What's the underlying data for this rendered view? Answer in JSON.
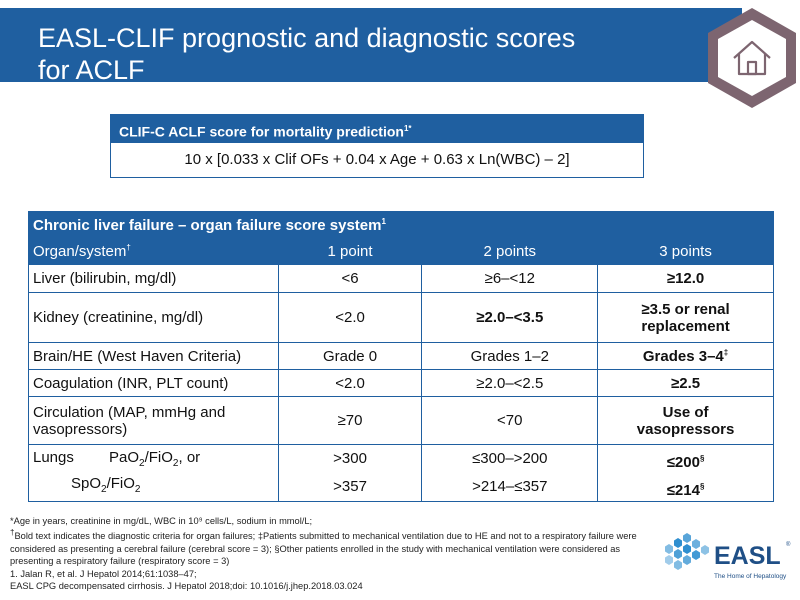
{
  "title": {
    "line1": "EASL-CLIF prognostic and diagnostic scores",
    "line2": "for ACLF"
  },
  "formula": {
    "header": "CLIF-C ACLF score for mortality prediction",
    "header_sup": "1*",
    "body": "10 x [0.033 x Clif OFs + 0.04 x Age + 0.63 x Ln(WBC) – 2]"
  },
  "table": {
    "title": "Chronic liver failure – organ failure score system",
    "title_sup": "1",
    "columns": {
      "organ": "Organ/system",
      "organ_sup": "†",
      "p1": "1 point",
      "p2": "2 points",
      "p3": "3 points"
    },
    "liver": {
      "label": "Liver (bilirubin, mg/dl)",
      "p1": "<6",
      "p2": "≥6–<12",
      "p3": "≥12.0"
    },
    "kidney": {
      "label": "Kidney (creatinine, mg/dl)",
      "p1": "<2.0",
      "p2": "≥2.0–<3.5",
      "p3_line1": "≥3.5 or renal",
      "p3_line2": "replacement"
    },
    "brain": {
      "label": "Brain/HE (West Haven Criteria)",
      "p1": "Grade 0",
      "p2": "Grades 1–2",
      "p3": "Grades 3–4",
      "p3_sup": "‡"
    },
    "coag": {
      "label": "Coagulation (INR, PLT count)",
      "p1": "<2.0",
      "p2": "≥2.0–<2.5",
      "p3": "≥2.5"
    },
    "circ": {
      "label_line1": "Circulation (MAP, mmHg and",
      "label_line2": "vasopressors)",
      "p1": "≥70",
      "p2": "<70",
      "p3_line1": "Use of",
      "p3_line2": "vasopressors"
    },
    "lungs": {
      "label": "Lungs",
      "pao2_a": "PaO",
      "pao2_b": "/FiO",
      "pao2_c": ", or",
      "spo2_a": "SpO",
      "spo2_b": "/FiO",
      "sub2": "2",
      "r1_p1": ">300",
      "r1_p2": "≤300–>200",
      "r1_p3": "≤200",
      "r1_sup": "§",
      "r2_p1": ">357",
      "r2_p2": ">214–≤357",
      "r2_p3": "≤214",
      "r2_sup": "§"
    }
  },
  "footnotes": {
    "f1": "*Age in years, creatinine in mg/dL, WBC in 10⁹ cells/L, sodium in mmol/L;",
    "f2_sup": "†",
    "f2": "Bold text indicates the diagnostic criteria for organ failures; ‡Patients submitted to mechanical ventilation due to HE and not to a respiratory failure were considered as presenting a cerebral failure (cerebral score = 3); §Other patients enrolled in the study with mechanical ventilation were considered as presenting a respiratory failure (respiratory score = 3)",
    "f3": "1. Jalan R, et al. J Hepatol 2014;61:1038–47;",
    "f4": "EASL CPG decompensated cirrhosis. J Hepatol 2018;doi: 10.1016/j.jhep.2018.03.024"
  },
  "logo": {
    "name": "EASL",
    "tagline": "The Home of Hepatology",
    "reg": "®"
  },
  "colors": {
    "primary": "#1f5fa0",
    "hex_border": "#7d6570",
    "logo_blue": "#2f8fd0"
  },
  "icons": {
    "home": "home-icon"
  }
}
